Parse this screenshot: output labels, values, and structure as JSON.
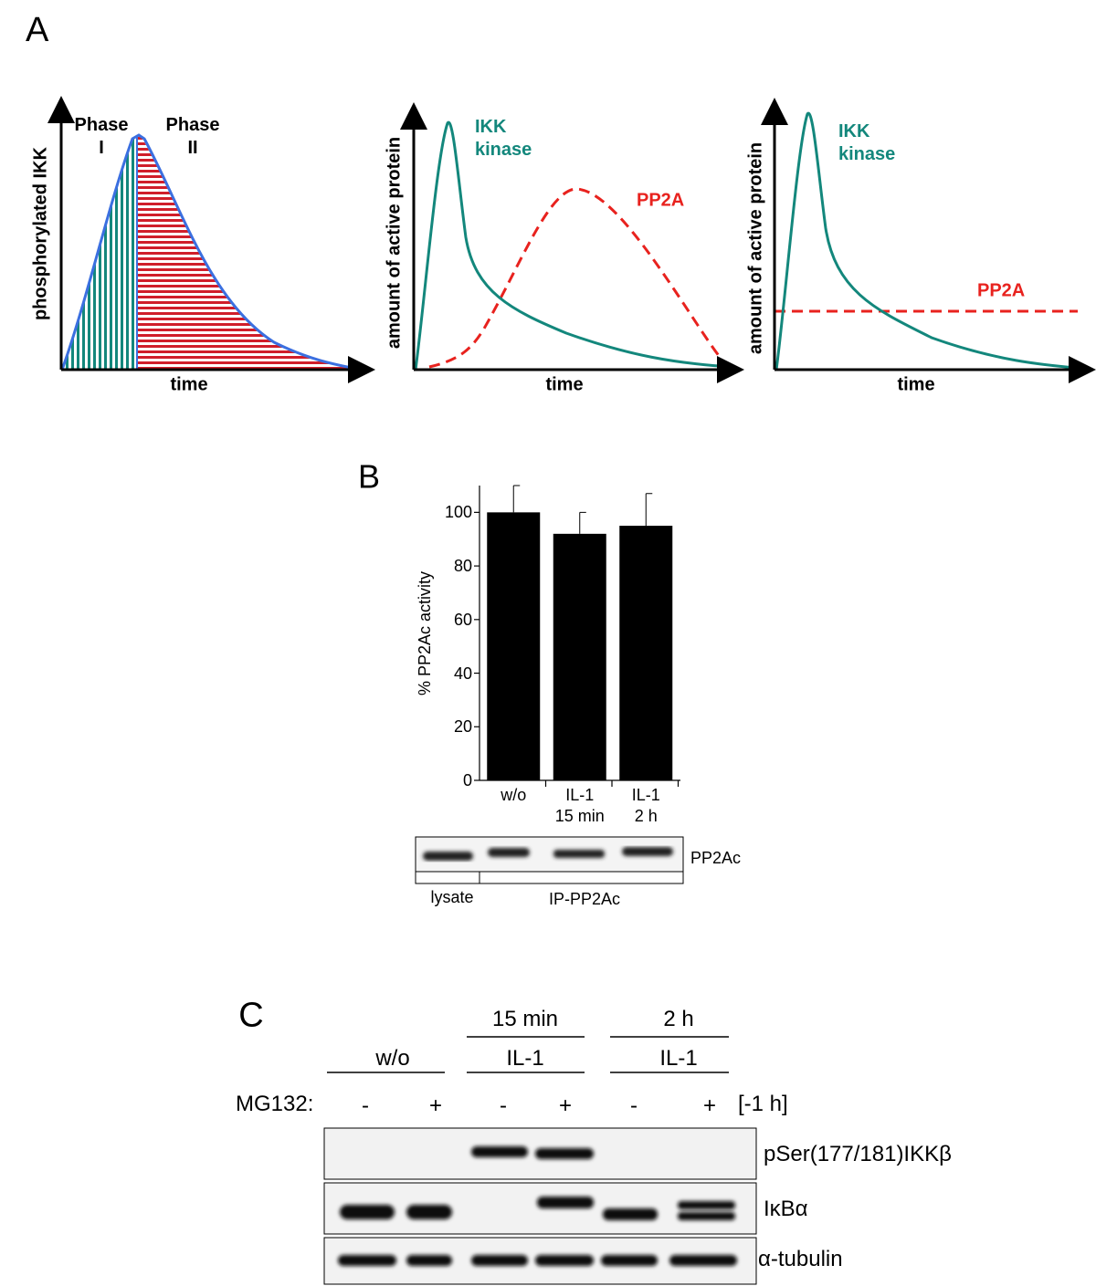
{
  "panel_a": {
    "label": "A",
    "plots": [
      {
        "y_label": "phosphorylated IKK",
        "x_label": "time",
        "phase_1": "Phase\nI",
        "phase_2": "Phase\nII"
      },
      {
        "y_label": "amount of active protein",
        "x_label": "time",
        "curve_1": "IKK\nkinase",
        "curve_2": "PP2A"
      },
      {
        "y_label": "amount of active protein",
        "x_label": "time",
        "curve_1": "IKK\nkinase",
        "curve_2": "PP2A"
      }
    ]
  },
  "chart_data": {
    "type": "bar",
    "panel_label": "B",
    "y_label": "% PP2Ac activity",
    "categories": [
      "w/o",
      "IL-1\n15 min",
      "IL-1\n2 h"
    ],
    "values": [
      100,
      92,
      95
    ],
    "errors": [
      10,
      8,
      12
    ],
    "color": "#000000",
    "ylim": [
      0,
      110
    ],
    "yticks": [
      0,
      20,
      40,
      60,
      80,
      100
    ]
  },
  "blot_b": {
    "band_label": "PP2Ac",
    "lanes": [
      "lysate",
      "IP-PP2Ac"
    ]
  },
  "panel_c": {
    "label": "C",
    "time_1": "15 min",
    "time_2": "2 h",
    "group_1": "w/o",
    "group_2": "IL-1",
    "group_3": "IL-1",
    "treatment": "MG132:",
    "signs": [
      "-",
      "+",
      "-",
      "+",
      "-",
      "+"
    ],
    "duration": "[-1 h]",
    "rows": [
      "pSer(177/181)IKKβ",
      "IκBα",
      "α-tubulin"
    ]
  }
}
